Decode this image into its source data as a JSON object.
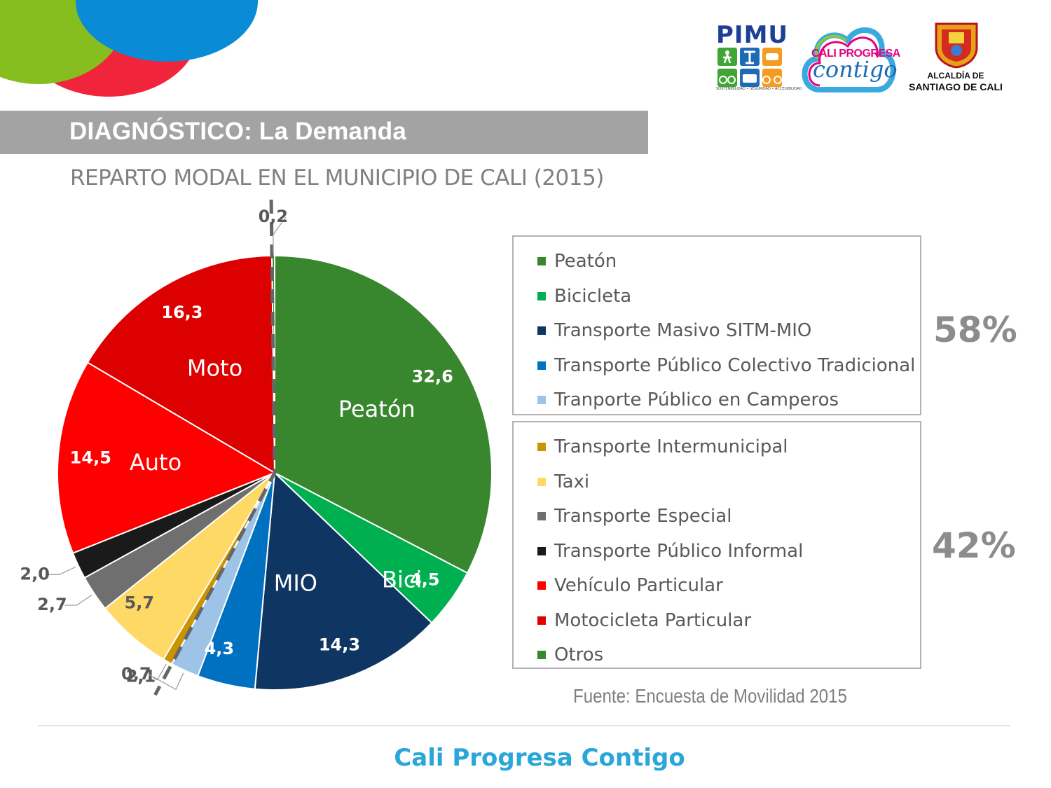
{
  "header": {
    "title": "DIAGNÓSTICO: La Demanda"
  },
  "subtitle": "REPARTO MODAL EN EL MUNICIPIO DE CALI (2015)",
  "logos": {
    "pimu": {
      "text": "PIMU",
      "caption": "SOSTENIBILIDAD • SEGURIDAD • ACCESIBILIDAD"
    },
    "cali_progresa": {
      "line1": "CALI PROGRESA",
      "line2": "contigo"
    },
    "alcaldia": {
      "line1": "ALCALDÍA DE",
      "line2": "SANTIAGO DE CALI"
    }
  },
  "chart_data": {
    "type": "pie",
    "slices": [
      {
        "label": "Peatón",
        "value": 32.6,
        "value_label": "32,6",
        "slice_label": "Peatón",
        "color": "#38862e"
      },
      {
        "label": "Bicicleta",
        "value": 4.5,
        "value_label": "4,5",
        "slice_label": "Bici",
        "color": "#00b050"
      },
      {
        "label": "Transporte Masivo SITM-MIO",
        "value": 14.3,
        "value_label": "14,3",
        "slice_label": "MIO",
        "color": "#0f3563"
      },
      {
        "label": "Transporte Público Colectivo Tradicional",
        "value": 4.3,
        "value_label": "4,3",
        "slice_label": "",
        "color": "#0070c0"
      },
      {
        "label": "Tranporte Público en Camperos",
        "value": 2.1,
        "value_label": "2,1",
        "slice_label": "",
        "color": "#9dc3e6"
      },
      {
        "label": "Transporte Intermunicipal",
        "value": 0.7,
        "value_label": "0,7",
        "slice_label": "",
        "color": "#c99400"
      },
      {
        "label": "Taxi",
        "value": 5.7,
        "value_label": "5,7",
        "slice_label": "",
        "color": "#ffd966"
      },
      {
        "label": "Transporte Especial",
        "value": 2.7,
        "value_label": "2,7",
        "slice_label": "",
        "color": "#6f6f6f"
      },
      {
        "label": "Transporte Público Informal",
        "value": 2.0,
        "value_label": "2,0",
        "slice_label": "",
        "color": "#1a1a1a"
      },
      {
        "label": "Vehículo Particular",
        "value": 14.5,
        "value_label": "14,5",
        "slice_label": "Auto",
        "color": "#ff0000"
      },
      {
        "label": "Motocicleta Particular",
        "value": 16.3,
        "value_label": "16,3",
        "slice_label": "Moto",
        "color": "#dc0000"
      },
      {
        "label": "Otros",
        "value": 0.2,
        "value_label": "0,2",
        "slice_label": "",
        "color": "#38862e"
      }
    ],
    "groups": [
      {
        "percent_label": "58%",
        "legend_count": 5
      },
      {
        "percent_label": "42%",
        "legend_count": 7
      }
    ],
    "legend_placement": "right"
  },
  "source": "Fuente: Encuesta de Movilidad 2015",
  "footer": {
    "text": "Cali Progresa Contigo"
  }
}
